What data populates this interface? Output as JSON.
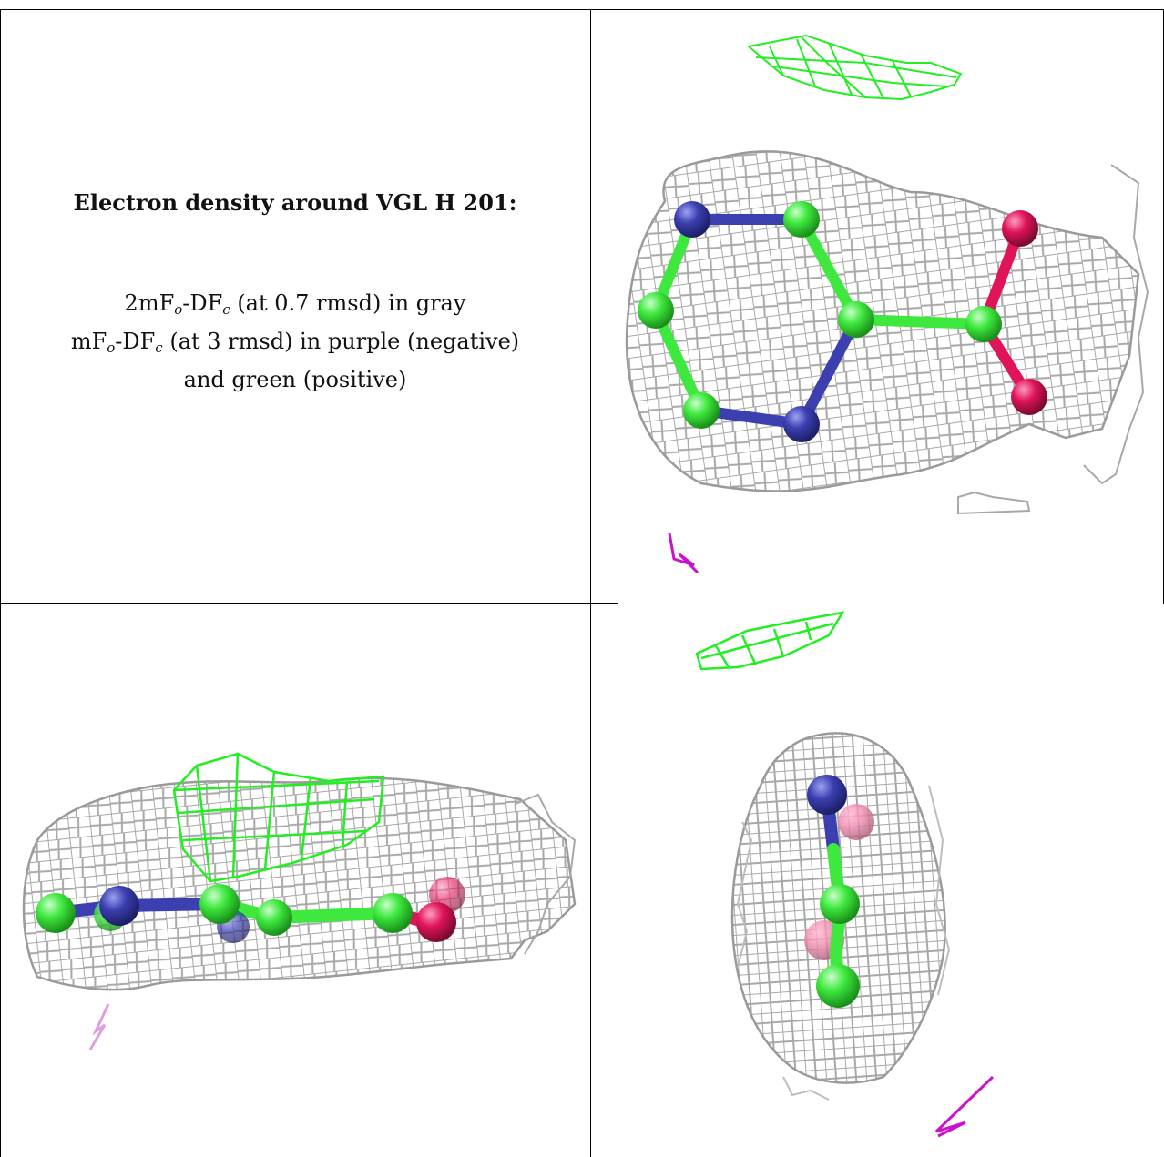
{
  "caption": {
    "title": "Electron density around VGL H 201:",
    "line1_pre": "2mF",
    "line1_sub1": "o",
    "line1_mid": "-DF",
    "line1_sub2": "c",
    "line1_post": " (at 0.7 rmsd) in gray",
    "line2_pre": "mF",
    "line2_sub1": "o",
    "line2_mid": "-DF",
    "line2_sub2": "c",
    "line2_post": " (at 3 rmsd) in purple (negative)",
    "line3": "and green (positive)"
  },
  "colors": {
    "mesh_2fofc": "#a8a8a8",
    "mesh_positive": "#22ee22",
    "mesh_negative": "#cc11cc",
    "carbon": "#3ee83e",
    "nitrogen": "#3b3fb0",
    "oxygen": "#e0145a"
  },
  "panels": [
    {
      "name": "view-top-right",
      "ligand": "VGL H 201",
      "view": "ring face-on"
    },
    {
      "name": "view-bottom-left",
      "ligand": "VGL H 201",
      "view": "ring edge-on, side"
    },
    {
      "name": "view-bottom-right",
      "ligand": "VGL H 201",
      "view": "ring edge-on, end"
    }
  ]
}
